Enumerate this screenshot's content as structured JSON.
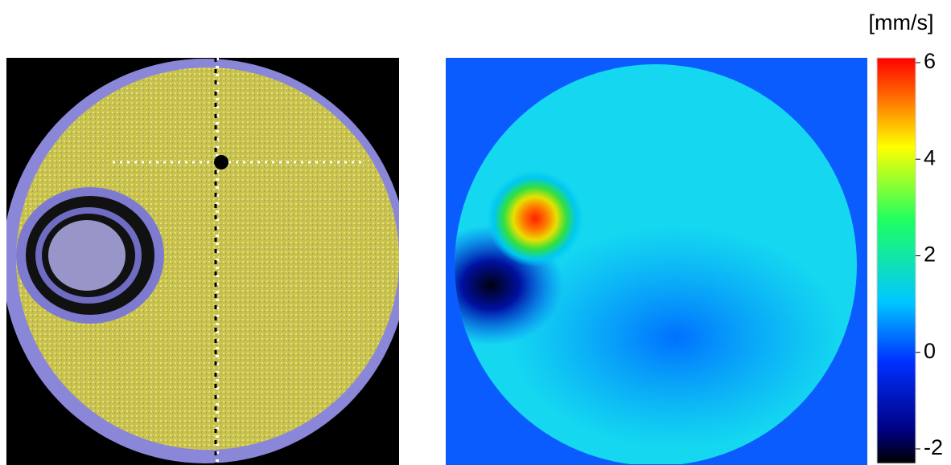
{
  "colorbar": {
    "label": "[mm/s]",
    "lim": [
      -2.3,
      6.1
    ],
    "ticks": [
      6,
      4,
      2,
      0,
      -2
    ]
  }
}
